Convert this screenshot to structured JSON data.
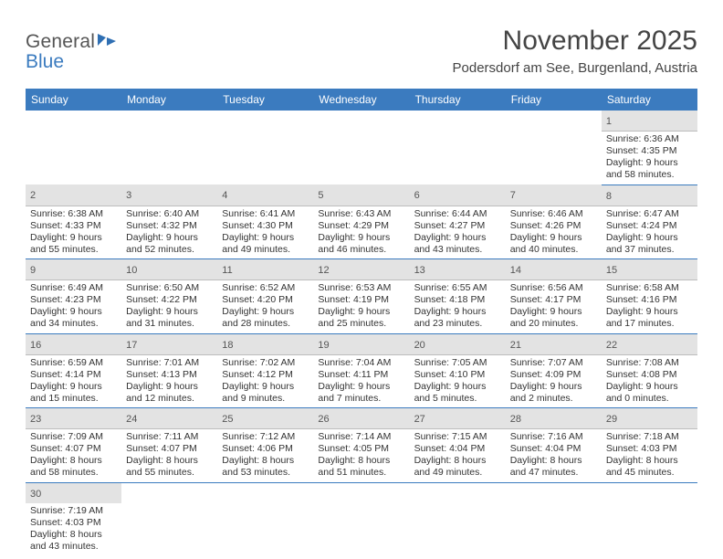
{
  "logo": {
    "text1": "General",
    "text2": "Blue"
  },
  "title": "November 2025",
  "location": "Podersdorf am See, Burgenland, Austria",
  "dayHeaders": [
    "Sunday",
    "Monday",
    "Tuesday",
    "Wednesday",
    "Thursday",
    "Friday",
    "Saturday"
  ],
  "colors": {
    "headerBar": "#3b7bbf",
    "dayNumBg": "#e3e3e3",
    "rowBorder": "#3b7bbf",
    "text": "#333333"
  },
  "weeks": [
    [
      null,
      null,
      null,
      null,
      null,
      null,
      {
        "n": "1",
        "sr": "Sunrise: 6:36 AM",
        "ss": "Sunset: 4:35 PM",
        "dl1": "Daylight: 9 hours",
        "dl2": "and 58 minutes."
      }
    ],
    [
      {
        "n": "2",
        "sr": "Sunrise: 6:38 AM",
        "ss": "Sunset: 4:33 PM",
        "dl1": "Daylight: 9 hours",
        "dl2": "and 55 minutes."
      },
      {
        "n": "3",
        "sr": "Sunrise: 6:40 AM",
        "ss": "Sunset: 4:32 PM",
        "dl1": "Daylight: 9 hours",
        "dl2": "and 52 minutes."
      },
      {
        "n": "4",
        "sr": "Sunrise: 6:41 AM",
        "ss": "Sunset: 4:30 PM",
        "dl1": "Daylight: 9 hours",
        "dl2": "and 49 minutes."
      },
      {
        "n": "5",
        "sr": "Sunrise: 6:43 AM",
        "ss": "Sunset: 4:29 PM",
        "dl1": "Daylight: 9 hours",
        "dl2": "and 46 minutes."
      },
      {
        "n": "6",
        "sr": "Sunrise: 6:44 AM",
        "ss": "Sunset: 4:27 PM",
        "dl1": "Daylight: 9 hours",
        "dl2": "and 43 minutes."
      },
      {
        "n": "7",
        "sr": "Sunrise: 6:46 AM",
        "ss": "Sunset: 4:26 PM",
        "dl1": "Daylight: 9 hours",
        "dl2": "and 40 minutes."
      },
      {
        "n": "8",
        "sr": "Sunrise: 6:47 AM",
        "ss": "Sunset: 4:24 PM",
        "dl1": "Daylight: 9 hours",
        "dl2": "and 37 minutes."
      }
    ],
    [
      {
        "n": "9",
        "sr": "Sunrise: 6:49 AM",
        "ss": "Sunset: 4:23 PM",
        "dl1": "Daylight: 9 hours",
        "dl2": "and 34 minutes."
      },
      {
        "n": "10",
        "sr": "Sunrise: 6:50 AM",
        "ss": "Sunset: 4:22 PM",
        "dl1": "Daylight: 9 hours",
        "dl2": "and 31 minutes."
      },
      {
        "n": "11",
        "sr": "Sunrise: 6:52 AM",
        "ss": "Sunset: 4:20 PM",
        "dl1": "Daylight: 9 hours",
        "dl2": "and 28 minutes."
      },
      {
        "n": "12",
        "sr": "Sunrise: 6:53 AM",
        "ss": "Sunset: 4:19 PM",
        "dl1": "Daylight: 9 hours",
        "dl2": "and 25 minutes."
      },
      {
        "n": "13",
        "sr": "Sunrise: 6:55 AM",
        "ss": "Sunset: 4:18 PM",
        "dl1": "Daylight: 9 hours",
        "dl2": "and 23 minutes."
      },
      {
        "n": "14",
        "sr": "Sunrise: 6:56 AM",
        "ss": "Sunset: 4:17 PM",
        "dl1": "Daylight: 9 hours",
        "dl2": "and 20 minutes."
      },
      {
        "n": "15",
        "sr": "Sunrise: 6:58 AM",
        "ss": "Sunset: 4:16 PM",
        "dl1": "Daylight: 9 hours",
        "dl2": "and 17 minutes."
      }
    ],
    [
      {
        "n": "16",
        "sr": "Sunrise: 6:59 AM",
        "ss": "Sunset: 4:14 PM",
        "dl1": "Daylight: 9 hours",
        "dl2": "and 15 minutes."
      },
      {
        "n": "17",
        "sr": "Sunrise: 7:01 AM",
        "ss": "Sunset: 4:13 PM",
        "dl1": "Daylight: 9 hours",
        "dl2": "and 12 minutes."
      },
      {
        "n": "18",
        "sr": "Sunrise: 7:02 AM",
        "ss": "Sunset: 4:12 PM",
        "dl1": "Daylight: 9 hours",
        "dl2": "and 9 minutes."
      },
      {
        "n": "19",
        "sr": "Sunrise: 7:04 AM",
        "ss": "Sunset: 4:11 PM",
        "dl1": "Daylight: 9 hours",
        "dl2": "and 7 minutes."
      },
      {
        "n": "20",
        "sr": "Sunrise: 7:05 AM",
        "ss": "Sunset: 4:10 PM",
        "dl1": "Daylight: 9 hours",
        "dl2": "and 5 minutes."
      },
      {
        "n": "21",
        "sr": "Sunrise: 7:07 AM",
        "ss": "Sunset: 4:09 PM",
        "dl1": "Daylight: 9 hours",
        "dl2": "and 2 minutes."
      },
      {
        "n": "22",
        "sr": "Sunrise: 7:08 AM",
        "ss": "Sunset: 4:08 PM",
        "dl1": "Daylight: 9 hours",
        "dl2": "and 0 minutes."
      }
    ],
    [
      {
        "n": "23",
        "sr": "Sunrise: 7:09 AM",
        "ss": "Sunset: 4:07 PM",
        "dl1": "Daylight: 8 hours",
        "dl2": "and 58 minutes."
      },
      {
        "n": "24",
        "sr": "Sunrise: 7:11 AM",
        "ss": "Sunset: 4:07 PM",
        "dl1": "Daylight: 8 hours",
        "dl2": "and 55 minutes."
      },
      {
        "n": "25",
        "sr": "Sunrise: 7:12 AM",
        "ss": "Sunset: 4:06 PM",
        "dl1": "Daylight: 8 hours",
        "dl2": "and 53 minutes."
      },
      {
        "n": "26",
        "sr": "Sunrise: 7:14 AM",
        "ss": "Sunset: 4:05 PM",
        "dl1": "Daylight: 8 hours",
        "dl2": "and 51 minutes."
      },
      {
        "n": "27",
        "sr": "Sunrise: 7:15 AM",
        "ss": "Sunset: 4:04 PM",
        "dl1": "Daylight: 8 hours",
        "dl2": "and 49 minutes."
      },
      {
        "n": "28",
        "sr": "Sunrise: 7:16 AM",
        "ss": "Sunset: 4:04 PM",
        "dl1": "Daylight: 8 hours",
        "dl2": "and 47 minutes."
      },
      {
        "n": "29",
        "sr": "Sunrise: 7:18 AM",
        "ss": "Sunset: 4:03 PM",
        "dl1": "Daylight: 8 hours",
        "dl2": "and 45 minutes."
      }
    ],
    [
      {
        "n": "30",
        "sr": "Sunrise: 7:19 AM",
        "ss": "Sunset: 4:03 PM",
        "dl1": "Daylight: 8 hours",
        "dl2": "and 43 minutes."
      },
      null,
      null,
      null,
      null,
      null,
      null
    ]
  ]
}
